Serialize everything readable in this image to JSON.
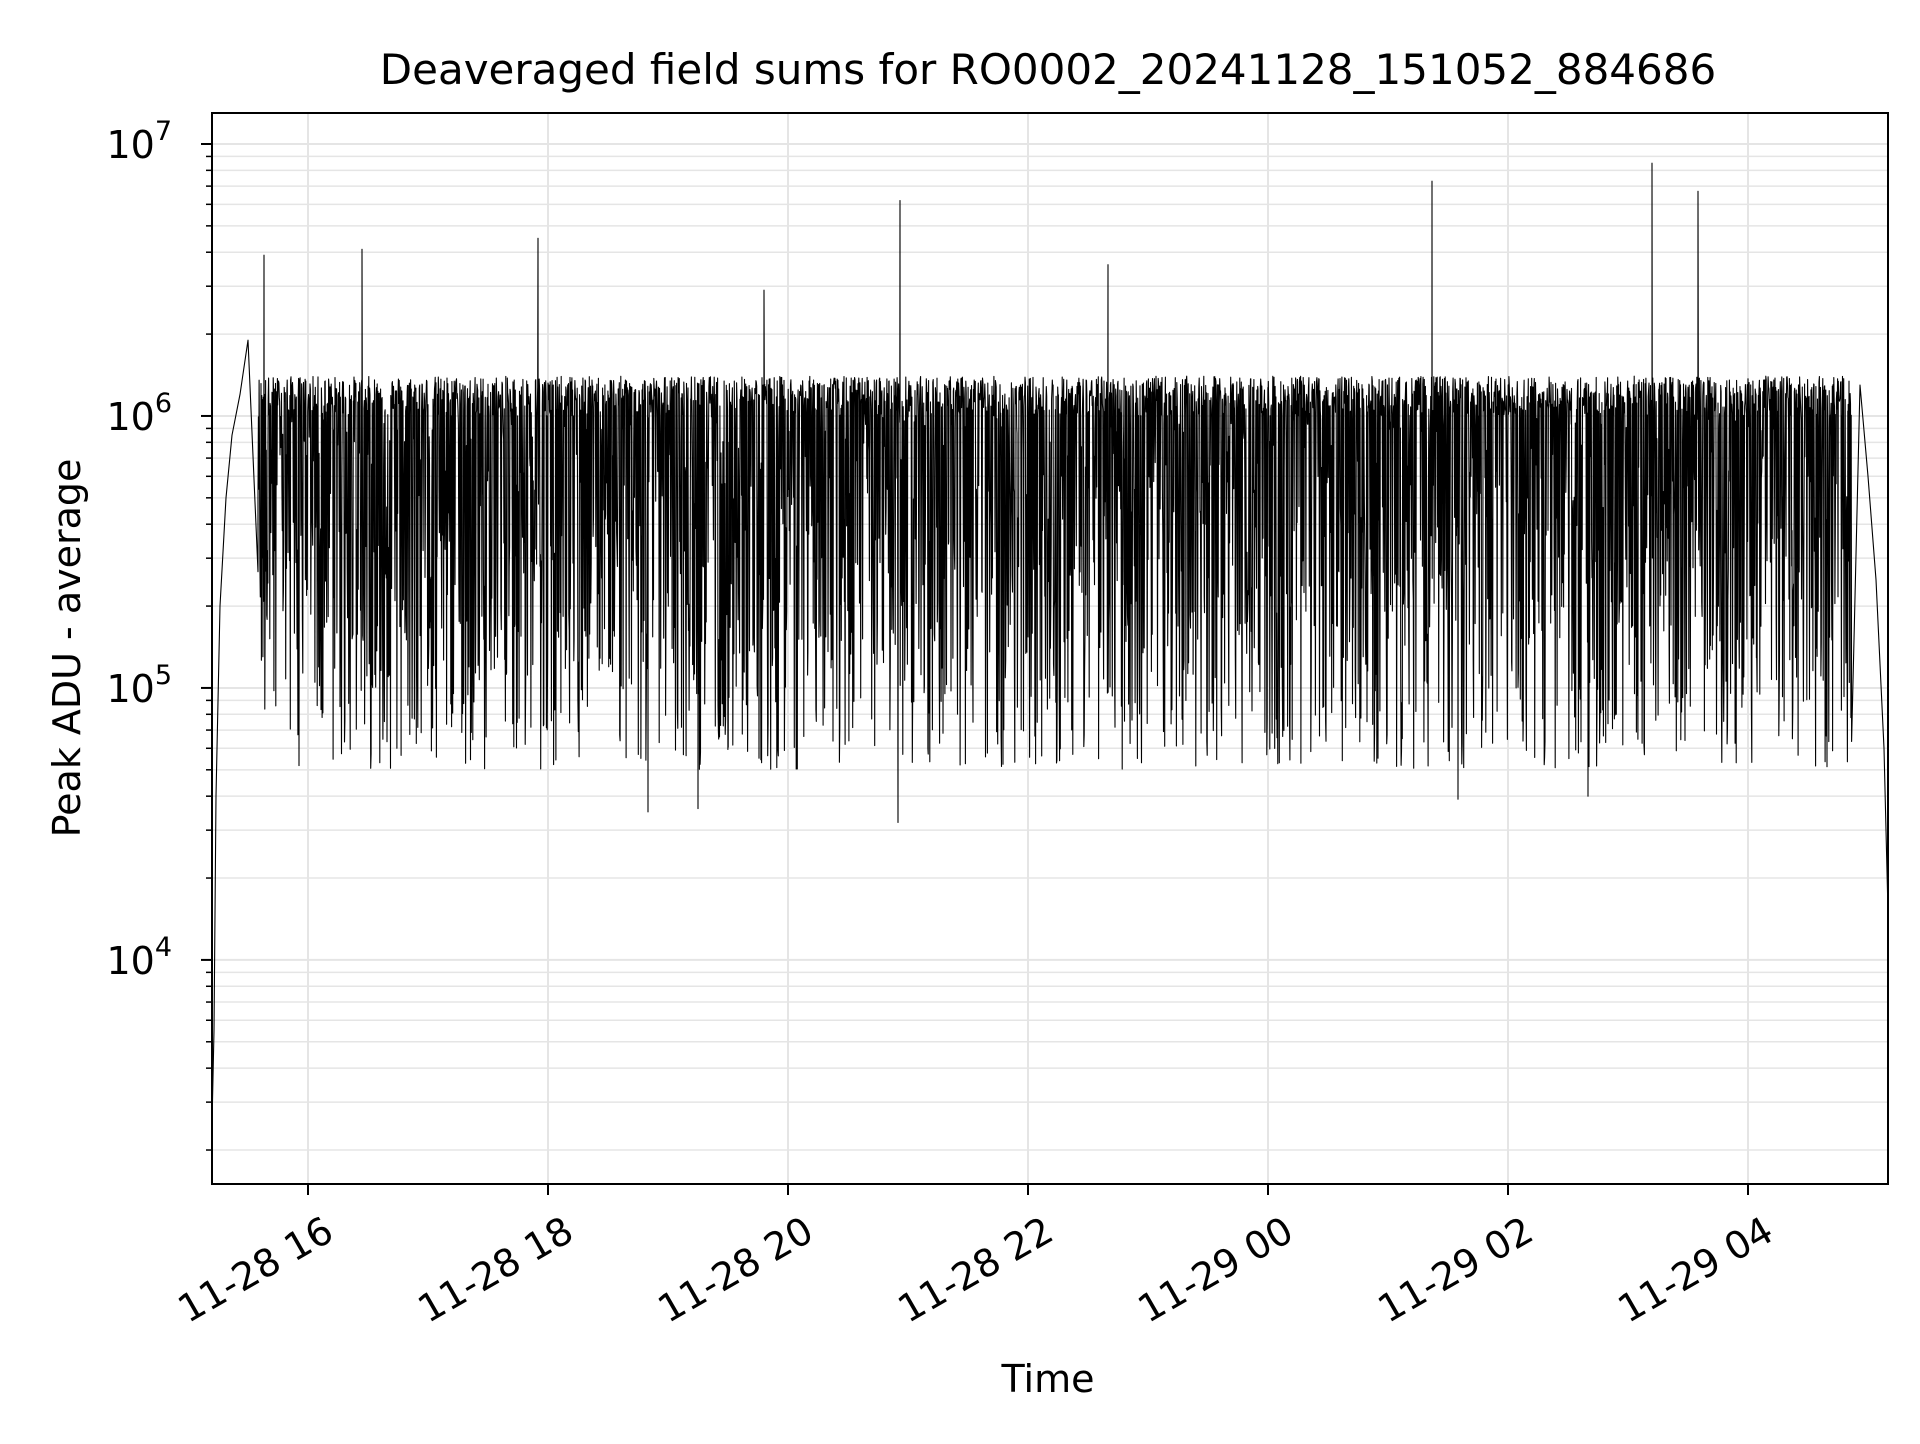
{
  "chart_data": {
    "type": "line",
    "title": "Deaveraged field sums for RO0002_20241128_151052_884686",
    "xlabel": "Time",
    "ylabel": "Peak ADU - average",
    "yscale": "log",
    "ylim": [
      1500,
      13000000
    ],
    "xlim": [
      "2024-11-28 15:12",
      "2024-11-29 05:10"
    ],
    "grid": true,
    "line_color": "#000000",
    "grid_color": "#e5e5e5",
    "x_ticks": [
      {
        "time": "2024-11-28 16:00",
        "label": "11-28 16"
      },
      {
        "time": "2024-11-28 18:00",
        "label": "11-28 18"
      },
      {
        "time": "2024-11-28 20:00",
        "label": "11-28 20"
      },
      {
        "time": "2024-11-28 22:00",
        "label": "11-28 22"
      },
      {
        "time": "2024-11-29 00:00",
        "label": "11-29 00"
      },
      {
        "time": "2024-11-29 02:00",
        "label": "11-29 02"
      },
      {
        "time": "2024-11-29 04:00",
        "label": "11-29 04"
      }
    ],
    "y_ticks": [
      {
        "value": 10000,
        "base": "10",
        "exp": "4"
      },
      {
        "value": 100000,
        "base": "10",
        "exp": "5"
      },
      {
        "value": 1000000,
        "base": "10",
        "exp": "6"
      },
      {
        "value": 10000000,
        "base": "10",
        "exp": "7"
      }
    ],
    "series": [
      {
        "x": [
          "2024-11-28 15:12",
          "2024-11-28 15:13",
          "2024-11-28 15:14",
          "2024-11-28 15:16",
          "2024-11-28 15:19",
          "2024-11-28 15:22",
          "2024-11-28 15:26",
          "2024-11-28 15:30",
          "2024-11-28 15:35",
          "2024-11-28 15:38",
          "2024-11-28 15:40",
          "2024-11-28 15:50",
          "2024-11-28 16:02",
          "2024-11-28 16:15",
          "2024-11-28 16:27",
          "2024-11-28 16:35",
          "2024-11-28 16:45",
          "2024-11-28 17:00",
          "2024-11-28 17:30",
          "2024-11-28 17:55",
          "2024-11-28 18:30",
          "2024-11-28 19:00",
          "2024-11-28 19:30",
          "2024-11-28 19:48",
          "2024-11-28 20:00",
          "2024-11-28 20:30",
          "2024-11-28 20:56",
          "2024-11-28 21:30",
          "2024-11-28 22:00",
          "2024-11-28 22:40",
          "2024-11-28 23:00",
          "2024-11-28 23:30",
          "2024-11-29 00:00",
          "2024-11-29 00:30",
          "2024-11-29 01:00",
          "2024-11-29 01:22",
          "2024-11-29 01:45",
          "2024-11-29 02:20",
          "2024-11-29 02:50",
          "2024-11-29 03:12",
          "2024-11-29 03:35",
          "2024-11-29 04:00",
          "2024-11-29 04:30",
          "2024-11-29 04:50",
          "2024-11-29 04:56",
          "2024-11-29 05:00",
          "2024-11-29 05:04",
          "2024-11-29 05:08",
          "2024-11-29 05:10"
        ],
        "values": [
          2500,
          5500,
          40000,
          200000,
          500000,
          850000,
          1200000,
          1900000,
          500000,
          3900000,
          800000,
          1000000,
          600000,
          1100000,
          4100000,
          800000,
          1000000,
          700000,
          1100000,
          4500000,
          900000,
          1000000,
          800000,
          2900000,
          1000000,
          900000,
          6200000,
          1000000,
          900000,
          3600000,
          1000000,
          900000,
          1000000,
          900000,
          1000000,
          7300000,
          1000000,
          1100000,
          1200000,
          8500000,
          6700000,
          1100000,
          600000,
          650000,
          1300000,
          600000,
          250000,
          60000,
          15000
        ]
      }
    ],
    "envelope": {
      "upper": [
        1000000,
        1400000
      ],
      "lower_typical": [
        50000,
        150000
      ],
      "lower_extremes": [
        {
          "time": "2024-11-28 18:50",
          "value": 35000
        },
        {
          "time": "2024-11-28 19:15",
          "value": 36000
        },
        {
          "time": "2024-11-28 20:55",
          "value": 32000
        },
        {
          "time": "2024-11-29 01:35",
          "value": 39000
        },
        {
          "time": "2024-11-29 02:40",
          "value": 40000
        }
      ]
    }
  }
}
